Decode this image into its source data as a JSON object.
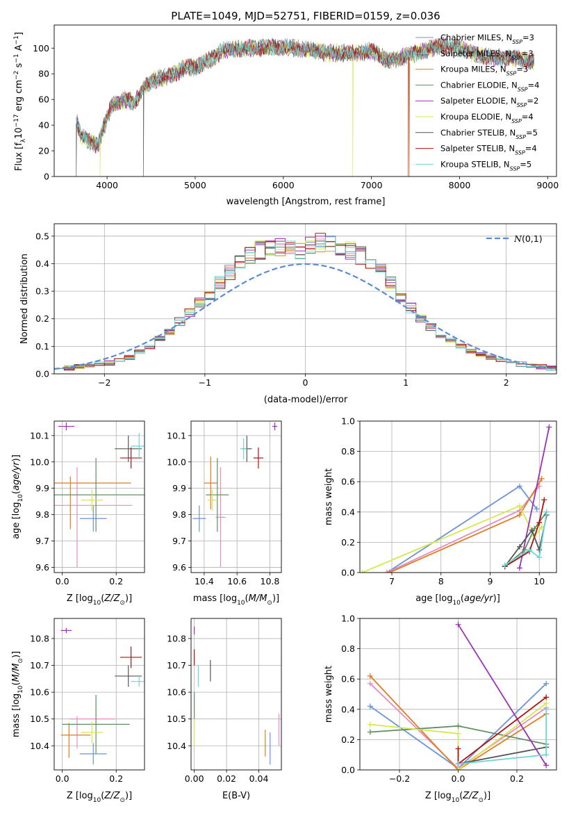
{
  "figure": {
    "title": "PLATE=1049, MJD=52751, FIBERID=0159, z=0.036"
  },
  "colors": {
    "Chabrier MILES": "#6a93d8",
    "Salpeter MILES": "#e88cbd",
    "Kroupa MILES": "#de7c22",
    "Chabrier ELODIE": "#5f8f60",
    "Salpeter ELODIE": "#9b30b8",
    "Kroupa ELODIE": "#d4e84a",
    "Chabrier STELIB": "#555555",
    "Salpeter STELIB": "#b01010",
    "Kroupa STELIB": "#6cd6d6"
  },
  "legend_labels": [
    "Chabrier MILES, N_SSP=3",
    "Salpeter MILES, N_SSP=3",
    "Kroupa MILES, N_SSP=3",
    "Chabrier ELODIE, N_SSP=4",
    "Salpeter ELODIE, N_SSP=2",
    "Kroupa ELODIE, N_SSP=4",
    "Chabrier STELIB, N_SSP=5",
    "Salpeter STELIB, N_SSP=4",
    "Kroupa STELIB, N_SSP=5"
  ],
  "chart_data": [
    {
      "id": "spectrum",
      "type": "line",
      "xlabel": "wavelength [Angstrom, rest frame]",
      "ylabel": "Flux [f_λ 10^-17 erg cm^-2 s^-1 A^-1]",
      "xlim": [
        3400,
        9100
      ],
      "ylim": [
        0,
        118
      ],
      "xticks": [
        4000,
        5000,
        6000,
        7000,
        8000,
        9000
      ],
      "yticks": [
        0,
        20,
        40,
        60,
        80,
        100
      ],
      "grid": false,
      "legend": "right",
      "continuum": [
        [
          3650,
          45
        ],
        [
          3700,
          32
        ],
        [
          3800,
          27
        ],
        [
          3900,
          25
        ],
        [
          3970,
          40
        ],
        [
          4050,
          55
        ],
        [
          4200,
          60
        ],
        [
          4300,
          58
        ],
        [
          4500,
          75
        ],
        [
          4700,
          78
        ],
        [
          4900,
          85
        ],
        [
          5000,
          85
        ],
        [
          5200,
          92
        ],
        [
          5300,
          98
        ],
        [
          5500,
          100
        ],
        [
          5700,
          100
        ],
        [
          6000,
          101
        ],
        [
          6300,
          99
        ],
        [
          6500,
          96
        ],
        [
          6800,
          96
        ],
        [
          7000,
          98
        ],
        [
          7200,
          90
        ],
        [
          7400,
          94
        ],
        [
          7600,
          98
        ],
        [
          7800,
          102
        ],
        [
          8000,
          100
        ],
        [
          8200,
          95
        ],
        [
          8400,
          92
        ],
        [
          8600,
          93
        ],
        [
          8800,
          90
        ],
        [
          8850,
          90
        ]
      ],
      "dropouts": [
        {
          "model": "Chabrier STELIB",
          "x": 3650
        },
        {
          "model": "Kroupa ELODIE",
          "x": 3920
        },
        {
          "model": "Chabrier STELIB",
          "x": 4410
        },
        {
          "model": "Kroupa ELODIE",
          "x": 6790
        },
        {
          "model": "Salpeter STELIB",
          "x": 7420
        },
        {
          "model": "Kroupa MILES",
          "x": 7430
        }
      ]
    },
    {
      "id": "residual_hist",
      "type": "step",
      "xlabel": "(data-model)/error",
      "ylabel": "Normed distribution",
      "xlim": [
        -2.5,
        2.5
      ],
      "ylim": [
        0,
        0.545
      ],
      "xticks": [
        -2,
        -1,
        0,
        1,
        2
      ],
      "yticks": [
        0.0,
        0.1,
        0.2,
        0.3,
        0.4,
        0.5
      ],
      "grid": true,
      "legend": "upper right",
      "reference_label": "N(0,1)",
      "bin_edges": [
        -2.5,
        -2.4,
        -2.3,
        -2.2,
        -2.1,
        -2.0,
        -1.9,
        -1.8,
        -1.7,
        -1.6,
        -1.5,
        -1.4,
        -1.3,
        -1.2,
        -1.1,
        -1.0,
        -0.9,
        -0.8,
        -0.7,
        -0.6,
        -0.5,
        -0.4,
        -0.3,
        -0.2,
        -0.1,
        0.0,
        0.1,
        0.2,
        0.3,
        0.4,
        0.5,
        0.6,
        0.7,
        0.8,
        0.9,
        1.0,
        1.1,
        1.2,
        1.3,
        1.4,
        1.5,
        1.6,
        1.7,
        1.8,
        1.9,
        2.0,
        2.1,
        2.2,
        2.3,
        2.4,
        2.5
      ],
      "envelope": [
        0.02,
        0.02,
        0.025,
        0.03,
        0.035,
        0.04,
        0.05,
        0.06,
        0.08,
        0.1,
        0.13,
        0.15,
        0.19,
        0.22,
        0.26,
        0.29,
        0.33,
        0.37,
        0.4,
        0.43,
        0.45,
        0.46,
        0.46,
        0.46,
        0.45,
        0.47,
        0.48,
        0.47,
        0.46,
        0.45,
        0.43,
        0.4,
        0.37,
        0.33,
        0.28,
        0.24,
        0.2,
        0.17,
        0.14,
        0.12,
        0.1,
        0.08,
        0.07,
        0.06,
        0.05,
        0.04,
        0.035,
        0.03,
        0.025,
        0.02
      ]
    },
    {
      "id": "age_vs_Z",
      "type": "errorbar",
      "xlabel": "Z [log10(Z/Z_sun)]",
      "ylabel": "age [log10(age/yr)]",
      "xlim": [
        -0.03,
        0.305
      ],
      "ylim": [
        9.58,
        10.155
      ],
      "xticks": [
        0.0,
        0.2
      ],
      "yticks": [
        9.6,
        9.7,
        9.8,
        9.9,
        10.0,
        10.1
      ],
      "grid": true,
      "points": [
        {
          "model": "Chabrier MILES",
          "x": 0.115,
          "xerr": 0.05,
          "y": 9.785,
          "yerr": 0.05
        },
        {
          "model": "Salpeter MILES",
          "x": 0.055,
          "xerr": 0.0,
          "y": 9.79,
          "yerr": 0.19
        },
        {
          "model": "Salpeter MILES",
          "x": 0.11,
          "xerr": 0.15,
          "y": 9.835,
          "yerr": 0.0
        },
        {
          "model": "Kroupa MILES",
          "x": 0.085,
          "xerr": 0.17,
          "y": 9.92,
          "yerr": 0.0
        },
        {
          "model": "Kroupa MILES",
          "x": 0.03,
          "xerr": 0.0,
          "y": 9.845,
          "yerr": 0.1
        },
        {
          "model": "Chabrier ELODIE",
          "x": 0.125,
          "xerr": 0.19,
          "y": 9.875,
          "yerr": 0.14
        },
        {
          "model": "Kroupa ELODIE",
          "x": 0.11,
          "xerr": 0.04,
          "y": 9.855,
          "yerr": 0.04
        },
        {
          "model": "Salpeter ELODIE",
          "x": 0.015,
          "xerr": 0.03,
          "y": 10.135,
          "yerr": 0.015
        },
        {
          "model": "Chabrier STELIB",
          "x": 0.245,
          "xerr": 0.05,
          "y": 10.05,
          "yerr": 0.05
        },
        {
          "model": "Salpeter STELIB",
          "x": 0.255,
          "xerr": 0.04,
          "y": 10.015,
          "yerr": 0.04
        },
        {
          "model": "Kroupa STELIB",
          "x": 0.285,
          "xerr": 0.03,
          "y": 10.06,
          "yerr": 0.05
        }
      ]
    },
    {
      "id": "age_vs_mass",
      "type": "errorbar",
      "xlabel": "mass [log10(M/M_sun)]",
      "ylabel": "",
      "xlim": [
        10.32,
        10.87
      ],
      "ylim": [
        9.58,
        10.155
      ],
      "xticks": [
        10.4,
        10.6,
        10.8
      ],
      "yticks": [
        9.6,
        9.7,
        9.8,
        9.9,
        10.0,
        10.1
      ],
      "grid": true,
      "points": [
        {
          "model": "Chabrier MILES",
          "x": 10.37,
          "xerr": 0.04,
          "y": 9.785,
          "yerr": 0.05
        },
        {
          "model": "Salpeter MILES",
          "x": 10.5,
          "xerr": 0.03,
          "y": 9.79,
          "yerr": 0.19
        },
        {
          "model": "Kroupa MILES",
          "x": 10.44,
          "xerr": 0.04,
          "y": 9.92,
          "yerr": 0.1
        },
        {
          "model": "Chabrier ELODIE",
          "x": 10.48,
          "xerr": 0.07,
          "y": 9.875,
          "yerr": 0.14
        },
        {
          "model": "Kroupa ELODIE",
          "x": 10.45,
          "xerr": 0.03,
          "y": 9.855,
          "yerr": 0.04
        },
        {
          "model": "Salpeter ELODIE",
          "x": 10.83,
          "xerr": 0.015,
          "y": 10.135,
          "yerr": 0.015
        },
        {
          "model": "Chabrier STELIB",
          "x": 10.66,
          "xerr": 0.03,
          "y": 10.05,
          "yerr": 0.05
        },
        {
          "model": "Salpeter STELIB",
          "x": 10.73,
          "xerr": 0.03,
          "y": 10.015,
          "yerr": 0.04
        },
        {
          "model": "Kroupa STELIB",
          "x": 10.64,
          "xerr": 0.02,
          "y": 10.05,
          "yerr": 0.04
        }
      ]
    },
    {
      "id": "weight_vs_age",
      "type": "line",
      "xlabel": "age [log10(age/yr)]",
      "ylabel": "mass weight",
      "xlim": [
        6.35,
        10.35
      ],
      "ylim": [
        0,
        1.0
      ],
      "xticks": [
        7,
        8,
        9,
        10
      ],
      "yticks": [
        0.0,
        0.2,
        0.4,
        0.6,
        0.8,
        1.0
      ],
      "grid": true,
      "series": [
        {
          "model": "Chabrier MILES",
          "x": [
            6.9,
            9.6,
            9.95
          ],
          "y": [
            0.0,
            0.57,
            0.42
          ]
        },
        {
          "model": "Salpeter MILES",
          "x": [
            6.9,
            9.6,
            10.0
          ],
          "y": [
            0.0,
            0.41,
            0.57
          ]
        },
        {
          "model": "Kroupa MILES",
          "x": [
            6.95,
            9.6,
            10.05
          ],
          "y": [
            0.0,
            0.38,
            0.62
          ]
        },
        {
          "model": "Kroupa ELODIE",
          "x": [
            6.4,
            9.6,
            9.9,
            10.05
          ],
          "y": [
            0.0,
            0.44,
            0.24,
            0.3
          ]
        },
        {
          "model": "Salpeter ELODIE",
          "x": [
            9.6,
            10.2
          ],
          "y": [
            0.03,
            0.96
          ]
        },
        {
          "model": "Chabrier ELODIE",
          "x": [
            9.3,
            9.7,
            9.9,
            10.15
          ],
          "y": [
            0.04,
            0.15,
            0.29,
            0.4
          ]
        },
        {
          "model": "Salpeter STELIB",
          "x": [
            9.3,
            9.8,
            10.0,
            10.1
          ],
          "y": [
            0.04,
            0.14,
            0.33,
            0.48
          ]
        },
        {
          "model": "Chabrier STELIB",
          "x": [
            9.3,
            9.6,
            9.85,
            10.0,
            10.15
          ],
          "y": [
            0.04,
            0.17,
            0.28,
            0.15,
            0.38
          ]
        },
        {
          "model": "Kroupa STELIB",
          "x": [
            9.3,
            9.8,
            10.0,
            10.15
          ],
          "y": [
            0.05,
            0.15,
            0.1,
            0.4
          ]
        }
      ]
    },
    {
      "id": "mass_vs_Z",
      "type": "errorbar",
      "xlabel": "Z [log10(Z/Z_sun)]",
      "ylabel": "mass [log10(M/M_sun)]",
      "xlim": [
        -0.03,
        0.305
      ],
      "ylim": [
        10.31,
        10.875
      ],
      "xticks": [
        0.0,
        0.2
      ],
      "yticks": [
        10.4,
        10.5,
        10.6,
        10.7,
        10.8
      ],
      "grid": true,
      "points": [
        {
          "model": "Chabrier MILES",
          "x": 0.115,
          "xerr": 0.05,
          "y": 10.37,
          "yerr": 0.04
        },
        {
          "model": "Salpeter MILES",
          "x": 0.11,
          "xerr": 0.085,
          "y": 10.5,
          "yerr": 0.0
        },
        {
          "model": "Salpeter MILES",
          "x": 0.055,
          "xerr": 0.0,
          "y": 10.45,
          "yerr": 0.06
        },
        {
          "model": "Kroupa MILES",
          "x": 0.05,
          "xerr": 0.055,
          "y": 10.44,
          "yerr": 0.0
        },
        {
          "model": "Kroupa MILES",
          "x": 0.025,
          "xerr": 0.0,
          "y": 10.42,
          "yerr": 0.065
        },
        {
          "model": "Chabrier ELODIE",
          "x": 0.125,
          "xerr": 0.125,
          "y": 10.48,
          "yerr": 0.11
        },
        {
          "model": "Kroupa ELODIE",
          "x": 0.11,
          "xerr": 0.04,
          "y": 10.45,
          "yerr": 0.04
        },
        {
          "model": "Salpeter ELODIE",
          "x": 0.015,
          "xerr": 0.02,
          "y": 10.83,
          "yerr": 0.01
        },
        {
          "model": "Chabrier STELIB",
          "x": 0.245,
          "xerr": 0.05,
          "y": 10.66,
          "yerr": 0.04
        },
        {
          "model": "Salpeter STELIB",
          "x": 0.255,
          "xerr": 0.04,
          "y": 10.73,
          "yerr": 0.04
        },
        {
          "model": "Kroupa STELIB",
          "x": 0.285,
          "xerr": 0.03,
          "y": 10.64,
          "yerr": 0.02
        }
      ]
    },
    {
      "id": "mass_vs_ebv",
      "type": "errorbar",
      "xlabel": "E(B-V)",
      "ylabel": "",
      "xlim": [
        -0.002,
        0.054
      ],
      "ylim": [
        10.31,
        10.875
      ],
      "xticks": [
        0.0,
        0.02,
        0.04
      ],
      "yticks": [
        10.4,
        10.5,
        10.6,
        10.7,
        10.8
      ],
      "grid": true,
      "points": [
        {
          "model": "Salpeter ELODIE",
          "x": 0.0,
          "xerr": 0.0,
          "y": 10.83,
          "yerr": 0.015
        },
        {
          "model": "Salpeter STELIB",
          "x": 0.0,
          "xerr": 0.0,
          "y": 10.73,
          "yerr": 0.03
        },
        {
          "model": "Chabrier ELODIE",
          "x": 0.0,
          "xerr": 0.0,
          "y": 10.55,
          "yerr": 0.05
        },
        {
          "model": "Kroupa ELODIE",
          "x": 0.0,
          "xerr": 0.0,
          "y": 10.45,
          "yerr": 0.05
        },
        {
          "model": "Kroupa STELIB",
          "x": 0.0025,
          "xerr": 0.0,
          "y": 10.66,
          "yerr": 0.04
        },
        {
          "model": "Chabrier STELIB",
          "x": 0.01,
          "xerr": 0.0,
          "y": 10.68,
          "yerr": 0.04
        },
        {
          "model": "Kroupa MILES",
          "x": 0.044,
          "xerr": 0.0,
          "y": 10.41,
          "yerr": 0.05
        },
        {
          "model": "Chabrier MILES",
          "x": 0.047,
          "xerr": 0.0,
          "y": 10.39,
          "yerr": 0.06
        },
        {
          "model": "Salpeter MILES",
          "x": 0.0525,
          "xerr": 0.0,
          "y": 10.46,
          "yerr": 0.06
        }
      ]
    },
    {
      "id": "weight_vs_Z",
      "type": "line",
      "xlabel": "Z [log10(Z/Z_sun)]",
      "ylabel": "mass weight",
      "xlim": [
        -0.335,
        0.335
      ],
      "ylim": [
        0,
        1.0
      ],
      "xticks": [
        -0.2,
        0.0,
        0.2
      ],
      "yticks": [
        0.0,
        0.2,
        0.4,
        0.6,
        0.8,
        1.0
      ],
      "grid": true,
      "series": [
        {
          "model": "Chabrier MILES",
          "x": [
            -0.3,
            0.0,
            0.3
          ],
          "y": [
            0.42,
            0.01,
            0.57
          ]
        },
        {
          "model": "Salpeter MILES",
          "x": [
            -0.3,
            0.0,
            0.3
          ],
          "y": [
            0.57,
            0.01,
            0.41
          ]
        },
        {
          "model": "Kroupa MILES",
          "x": [
            -0.3,
            0.0,
            0.3
          ],
          "y": [
            0.62,
            0.0,
            0.37
          ]
        },
        {
          "model": "Chabrier ELODIE",
          "x": [
            -0.3,
            0.0,
            0.3
          ],
          "y": [
            0.25,
            0.29,
            0.17
          ]
        },
        {
          "model": "Kroupa ELODIE",
          "x": [
            -0.3,
            0.0,
            0.0,
            0.3
          ],
          "y": [
            0.3,
            0.24,
            0.0,
            0.44
          ]
        },
        {
          "model": "Salpeter ELODIE",
          "x": [
            0.0,
            0.3
          ],
          "y": [
            0.96,
            0.03
          ]
        },
        {
          "model": "Salpeter STELIB",
          "x": [
            0.0,
            0.0,
            0.3
          ],
          "y": [
            0.14,
            0.04,
            0.48
          ]
        },
        {
          "model": "Chabrier STELIB",
          "x": [
            0.0,
            0.3
          ],
          "y": [
            0.04,
            0.15
          ]
        },
        {
          "model": "Kroupa STELIB",
          "x": [
            0.0,
            0.3,
            0.3
          ],
          "y": [
            0.04,
            0.1,
            0.4
          ]
        }
      ]
    }
  ]
}
